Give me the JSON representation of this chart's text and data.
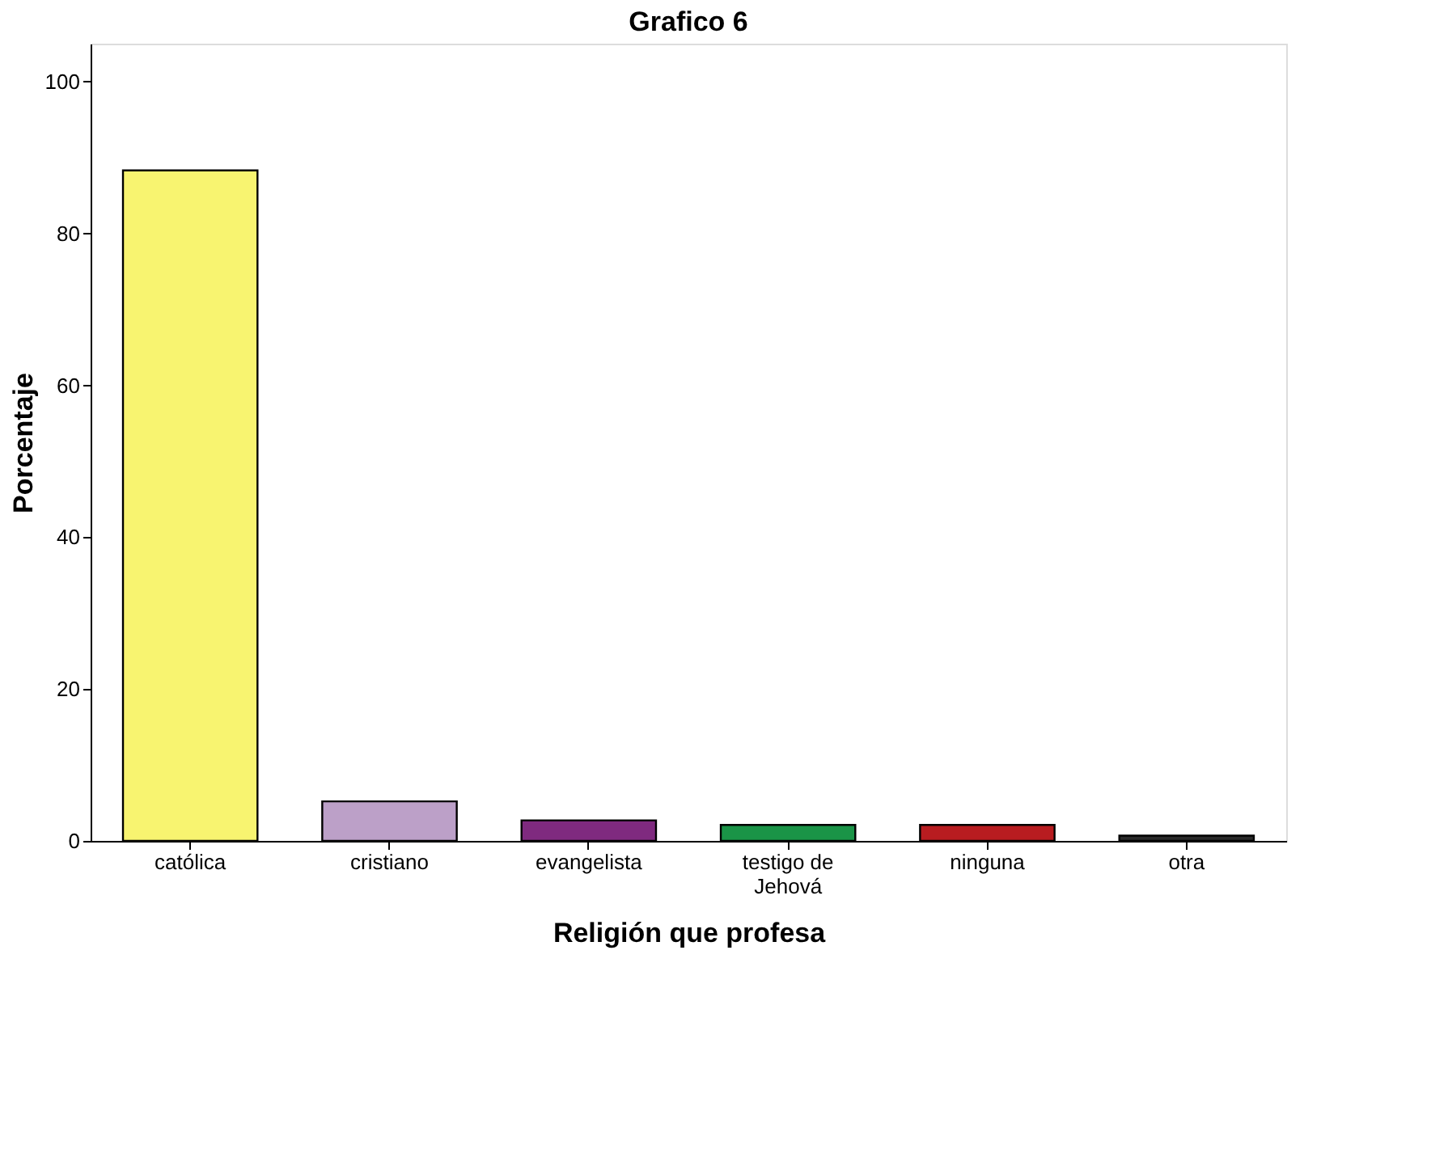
{
  "chart_data": {
    "type": "bar",
    "title": "Grafico 6",
    "xlabel": "Religión que profesa",
    "ylabel": "Porcentaje",
    "categories": [
      "católica",
      "cristiano",
      "evangelista",
      "testigo de\nJehová",
      "ninguna",
      "otra"
    ],
    "values": [
      88.3,
      5.2,
      2.7,
      2.1,
      2.1,
      0.7
    ],
    "colors": [
      "#f8f470",
      "#bca0c8",
      "#7f2a7f",
      "#1a9447",
      "#b81c20",
      "#2a2a2a"
    ],
    "ylim": [
      0,
      105
    ],
    "yticks": [
      0,
      20,
      40,
      60,
      80,
      100
    ],
    "grid": false
  }
}
